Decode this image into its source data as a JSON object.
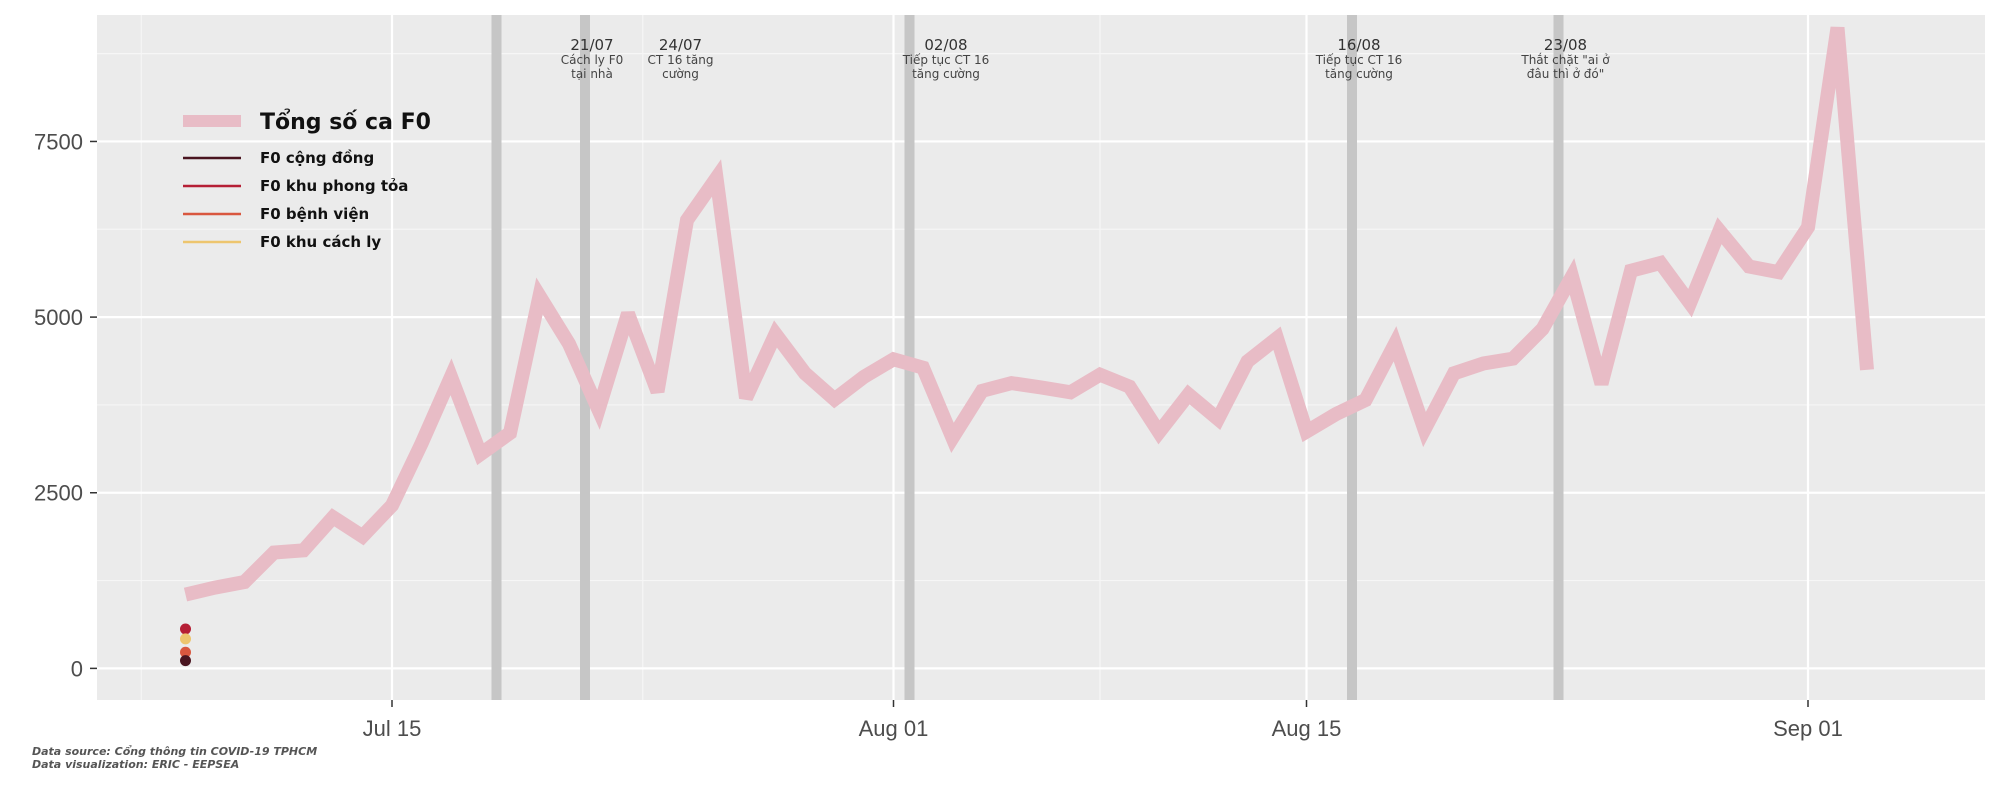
{
  "chart_data": {
    "type": "line",
    "x_axis": {
      "type": "date",
      "range": [
        "2021-07-05",
        "2021-09-07"
      ],
      "ticks": [
        {
          "date": "2021-07-15",
          "label": "Jul 15"
        },
        {
          "date": "2021-08-01",
          "label": "Aug 01"
        },
        {
          "date": "2021-08-15",
          "label": "Aug 15"
        },
        {
          "date": "2021-09-01",
          "label": "Sep 01"
        }
      ]
    },
    "y_axis": {
      "range": [
        -450,
        9300
      ],
      "ticks": [
        0,
        2500,
        5000,
        7500
      ],
      "labels": [
        "0",
        "2500",
        "5000",
        "7500"
      ]
    },
    "grid": true,
    "legend_placement": "top-left",
    "legend": [
      {
        "label": "Tổng số ca F0",
        "color": "#e8bcc6",
        "style": "thick"
      },
      {
        "label": "F0 cộng đồng",
        "color": "#4a1520",
        "style": "thin"
      },
      {
        "label": "F0 khu phong tỏa",
        "color": "#b51f35",
        "style": "thin"
      },
      {
        "label": "F0 bệnh viện",
        "color": "#d9573f",
        "style": "thin"
      },
      {
        "label": "F0 khu cách ly",
        "color": "#edc56e",
        "style": "thin"
      }
    ],
    "series": [
      {
        "name": "Tổng số ca F0",
        "color": "#e8bcc6",
        "points": [
          [
            "2021-07-08",
            1050
          ],
          [
            "2021-07-09",
            1150
          ],
          [
            "2021-07-10",
            1230
          ],
          [
            "2021-07-11",
            1650
          ],
          [
            "2021-07-12",
            1680
          ],
          [
            "2021-07-13",
            2150
          ],
          [
            "2021-07-14",
            1880
          ],
          [
            "2021-07-15",
            2320
          ],
          [
            "2021-07-16",
            3200
          ],
          [
            "2021-07-17",
            4150
          ],
          [
            "2021-07-18",
            3050
          ],
          [
            "2021-07-19",
            3350
          ],
          [
            "2021-07-20",
            5300
          ],
          [
            "2021-07-21",
            4620
          ],
          [
            "2021-07-22",
            3680
          ],
          [
            "2021-07-23",
            5050
          ],
          [
            "2021-07-24",
            3940
          ],
          [
            "2021-07-25",
            6380
          ],
          [
            "2021-07-26",
            6980
          ],
          [
            "2021-07-27",
            3850
          ],
          [
            "2021-07-28",
            4760
          ],
          [
            "2021-07-29",
            4200
          ],
          [
            "2021-07-30",
            3830
          ],
          [
            "2021-07-31",
            4150
          ],
          [
            "2021-08-01",
            4400
          ],
          [
            "2021-08-02",
            4280
          ],
          [
            "2021-08-03",
            3280
          ],
          [
            "2021-08-04",
            3950
          ],
          [
            "2021-08-05",
            4060
          ],
          [
            "2021-08-06",
            4000
          ],
          [
            "2021-08-07",
            3930
          ],
          [
            "2021-08-08",
            4180
          ],
          [
            "2021-08-09",
            4010
          ],
          [
            "2021-08-10",
            3360
          ],
          [
            "2021-08-11",
            3900
          ],
          [
            "2021-08-12",
            3550
          ],
          [
            "2021-08-13",
            4370
          ],
          [
            "2021-08-14",
            4700
          ],
          [
            "2021-08-15",
            3370
          ],
          [
            "2021-08-16",
            3620
          ],
          [
            "2021-08-17",
            3820
          ],
          [
            "2021-08-18",
            4620
          ],
          [
            "2021-08-19",
            3400
          ],
          [
            "2021-08-20",
            4200
          ],
          [
            "2021-08-21",
            4340
          ],
          [
            "2021-08-22",
            4410
          ],
          [
            "2021-08-23",
            4830
          ],
          [
            "2021-08-24",
            5580
          ],
          [
            "2021-08-25",
            4050
          ],
          [
            "2021-08-26",
            5660
          ],
          [
            "2021-08-27",
            5770
          ],
          [
            "2021-08-28",
            5200
          ],
          [
            "2021-08-29",
            6230
          ],
          [
            "2021-08-30",
            5720
          ],
          [
            "2021-08-31",
            5640
          ],
          [
            "2021-09-01",
            6280
          ],
          [
            "2021-09-02",
            9120
          ],
          [
            "2021-09-03",
            4250
          ]
        ]
      }
    ],
    "dots": [
      {
        "date": "2021-07-08",
        "value": 560,
        "color": "#b51f35"
      },
      {
        "date": "2021-07-08",
        "value": 420,
        "color": "#edc56e"
      },
      {
        "date": "2021-07-08",
        "value": 230,
        "color": "#d9573f"
      },
      {
        "date": "2021-07-08",
        "value": 110,
        "color": "#4a1520"
      }
    ],
    "annotations": [
      {
        "date": "2021-07-21",
        "label": "21/07",
        "lines": [
          "Cách ly F0",
          "tại nhà"
        ]
      },
      {
        "date": "2021-07-24",
        "label": "24/07",
        "lines": [
          "CT 16 tăng",
          "cường"
        ]
      },
      {
        "date": "2021-08-02",
        "label": "02/08",
        "lines": [
          "Tiếp tục CT 16",
          "tăng cường"
        ]
      },
      {
        "date": "2021-08-16",
        "label": "16/08",
        "lines": [
          "Tiếp tục CT 16",
          "tăng cường"
        ]
      },
      {
        "date": "2021-08-23",
        "label": "23/08",
        "lines": [
          "Thắt chặt \"ai ở",
          "đâu thì ở đó\""
        ]
      }
    ],
    "vlines": [
      "2021-07-18",
      "2021-07-21",
      "2021-08-01",
      "2021-08-16",
      "2021-08-23"
    ]
  },
  "caption": {
    "line1": "Data source: Cổng thông tin COVID-19 TPHCM",
    "line2": "Data visualization: ERIC - EEPSEA"
  },
  "colors": {
    "panel": "#ebebeb",
    "grid_major": "#ffffff",
    "event_band": "#c6c6c6"
  }
}
